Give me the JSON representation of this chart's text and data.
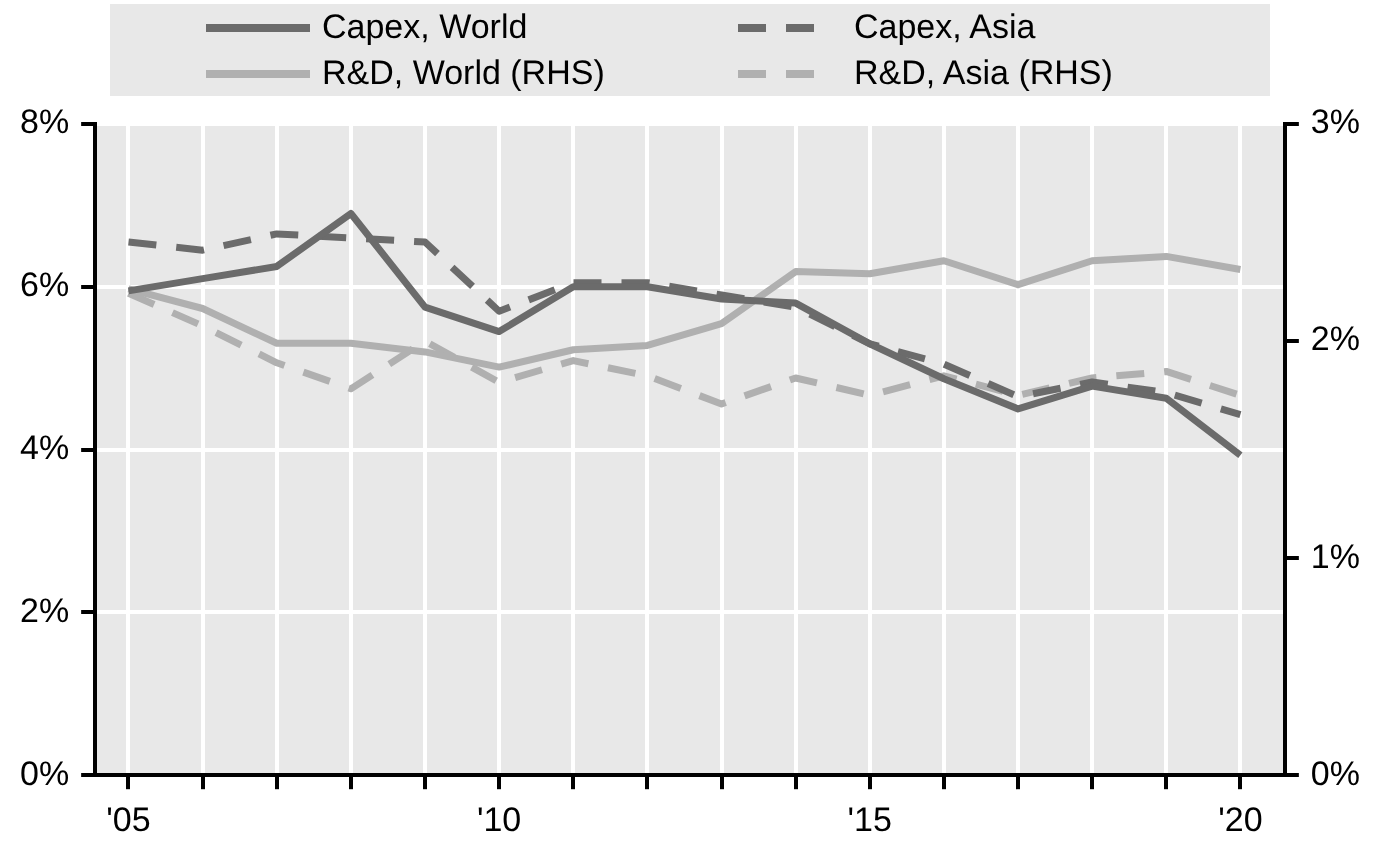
{
  "chart_data": {
    "type": "line",
    "x": [
      2005,
      2006,
      2007,
      2008,
      2009,
      2010,
      2011,
      2012,
      2013,
      2014,
      2015,
      2016,
      2017,
      2018,
      2019,
      2020
    ],
    "series": [
      {
        "name": "Capex, World",
        "color": "#6b6b6b",
        "line_style": "solid",
        "values": [
          5.95,
          6.1,
          6.25,
          6.9,
          5.75,
          5.45,
          6.0,
          6.0,
          5.85,
          5.8,
          5.3,
          4.87,
          4.5,
          4.78,
          4.63,
          3.93
        ]
      },
      {
        "name": "Capex, Asia",
        "color": "#6b6b6b",
        "line_style": "dashed",
        "values": [
          6.55,
          6.45,
          6.65,
          6.6,
          6.55,
          5.7,
          6.05,
          6.05,
          5.9,
          5.75,
          5.3,
          5.05,
          4.65,
          4.83,
          4.7,
          4.43
        ]
      },
      {
        "name": "R&D, World (RHS)",
        "color": "#b0b0b0",
        "line_style": "solid",
        "axis": "y2",
        "values": [
          2.24,
          2.15,
          1.99,
          1.99,
          1.95,
          1.88,
          1.96,
          1.98,
          2.08,
          2.32,
          2.31,
          2.37,
          2.26,
          2.37,
          2.39,
          2.33
        ]
      },
      {
        "name": "R&D, Asia (RHS)",
        "color": "#b0b0b0",
        "line_style": "dashed",
        "axis": "y2",
        "values": [
          2.22,
          2.07,
          1.9,
          1.78,
          2.0,
          1.81,
          1.91,
          1.84,
          1.71,
          1.83,
          1.75,
          1.84,
          1.75,
          1.83,
          1.86,
          1.75
        ]
      }
    ],
    "xlim": [
      2004.55,
      2020.6
    ],
    "xticks": [
      {
        "value": 2005,
        "label": "'05"
      },
      {
        "value": 2006,
        "label": null
      },
      {
        "value": 2007,
        "label": null
      },
      {
        "value": 2008,
        "label": null
      },
      {
        "value": 2009,
        "label": null
      },
      {
        "value": 2010,
        "label": "'10"
      },
      {
        "value": 2011,
        "label": null
      },
      {
        "value": 2012,
        "label": null
      },
      {
        "value": 2013,
        "label": null
      },
      {
        "value": 2014,
        "label": null
      },
      {
        "value": 2015,
        "label": "'15"
      },
      {
        "value": 2016,
        "label": null
      },
      {
        "value": 2017,
        "label": null
      },
      {
        "value": 2018,
        "label": null
      },
      {
        "value": 2019,
        "label": null
      },
      {
        "value": 2020,
        "label": "'20"
      }
    ],
    "ylim": [
      0,
      8
    ],
    "yticks": [
      {
        "value": 0,
        "label": "0%"
      },
      {
        "value": 2,
        "label": "2%"
      },
      {
        "value": 4,
        "label": "4%"
      },
      {
        "value": 6,
        "label": "6%"
      },
      {
        "value": 8,
        "label": "8%"
      }
    ],
    "y2lim": [
      0,
      3
    ],
    "y2ticks": [
      {
        "value": 0,
        "label": "0%"
      },
      {
        "value": 1,
        "label": "1%"
      },
      {
        "value": 2,
        "label": "2%"
      },
      {
        "value": 3,
        "label": "3%"
      }
    ],
    "grid": true,
    "legend": "top",
    "marker": "none"
  }
}
